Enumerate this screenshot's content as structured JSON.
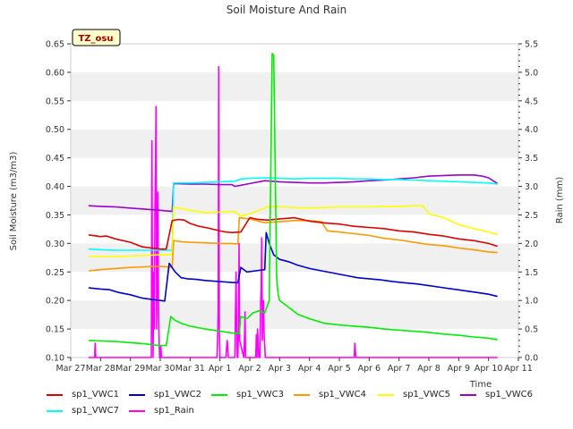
{
  "chart_data": {
    "type": "line",
    "title": "Soil Moisture And Rain",
    "site_label": "TZ_osu",
    "xlabel": "Time",
    "ylabel": "Soil Moisture (m3/m3)",
    "y2label": "Rain (mm)",
    "xlim": [
      0,
      15
    ],
    "ylim": [
      0.1,
      0.65
    ],
    "y2lim": [
      0.0,
      5.5
    ],
    "x_ticks": [
      0,
      1,
      2,
      3,
      4,
      5,
      6,
      7,
      8,
      9,
      10,
      11,
      12,
      13,
      14,
      15
    ],
    "x_tick_labels": [
      "Mar 27",
      "Mar 28",
      "Mar 29",
      "Mar 30",
      "Mar 31",
      "Apr 1",
      "Apr 2",
      "Apr 3",
      "Apr 4",
      "Apr 5",
      "Apr 6",
      "Apr 7",
      "Apr 8",
      "Apr 9",
      "Apr 10",
      "Apr 11"
    ],
    "y_ticks": [
      "0.10",
      "0.15",
      "0.20",
      "0.25",
      "0.30",
      "0.35",
      "0.40",
      "0.45",
      "0.50",
      "0.55",
      "0.60",
      "0.65"
    ],
    "y2_ticks": [
      "0.0",
      "0.5",
      "1.0",
      "1.5",
      "2.0",
      "2.5",
      "3.0",
      "3.5",
      "4.0",
      "4.5",
      "5.0",
      "5.5"
    ],
    "grid": "horizontal bands",
    "legend_position": "bottom",
    "series": [
      {
        "name": "sp1_VWC1",
        "color": "#dd0000",
        "axis": "left",
        "x": [
          0.6,
          1.0,
          1.2,
          1.5,
          2.0,
          2.4,
          2.7,
          3.0,
          3.2,
          3.4,
          3.6,
          3.8,
          4.0,
          4.3,
          4.6,
          5.0,
          5.2,
          5.4,
          5.7,
          6.0,
          6.3,
          6.6,
          7.0,
          7.5,
          8.0,
          8.5,
          9.0,
          9.5,
          10.0,
          10.5,
          11.0,
          11.5,
          12.0,
          12.5,
          13.0,
          13.5,
          14.0,
          14.3
        ],
        "y": [
          0.315,
          0.312,
          0.313,
          0.308,
          0.302,
          0.294,
          0.292,
          0.29,
          0.29,
          0.34,
          0.342,
          0.341,
          0.335,
          0.33,
          0.327,
          0.322,
          0.32,
          0.319,
          0.32,
          0.345,
          0.342,
          0.341,
          0.343,
          0.345,
          0.339,
          0.336,
          0.334,
          0.33,
          0.328,
          0.326,
          0.322,
          0.32,
          0.316,
          0.313,
          0.308,
          0.305,
          0.3,
          0.295
        ]
      },
      {
        "name": "sp1_VWC2",
        "color": "#0000cc",
        "axis": "left",
        "x": [
          0.6,
          1.0,
          1.3,
          1.6,
          2.0,
          2.4,
          2.7,
          3.0,
          3.15,
          3.3,
          3.5,
          3.7,
          3.9,
          4.2,
          4.5,
          5.0,
          5.3,
          5.6,
          5.7,
          5.9,
          6.2,
          6.5,
          6.55,
          6.65,
          6.8,
          7.0,
          7.3,
          7.6,
          8.0,
          8.4,
          8.8,
          9.2,
          9.6,
          10.0,
          10.4,
          10.8,
          11.2,
          11.6,
          12.0,
          12.4,
          12.8,
          13.2,
          13.6,
          14.0,
          14.3
        ],
        "y": [
          0.222,
          0.22,
          0.219,
          0.214,
          0.21,
          0.204,
          0.202,
          0.2,
          0.199,
          0.265,
          0.25,
          0.24,
          0.238,
          0.237,
          0.235,
          0.233,
          0.232,
          0.231,
          0.258,
          0.25,
          0.252,
          0.254,
          0.319,
          0.3,
          0.28,
          0.272,
          0.268,
          0.262,
          0.256,
          0.252,
          0.248,
          0.244,
          0.24,
          0.238,
          0.236,
          0.233,
          0.231,
          0.229,
          0.226,
          0.223,
          0.22,
          0.217,
          0.214,
          0.211,
          0.207
        ]
      },
      {
        "name": "sp1_VWC3",
        "color": "#00ee00",
        "axis": "left",
        "x": [
          0.6,
          1.0,
          1.5,
          2.0,
          2.5,
          2.8,
          3.0,
          3.2,
          3.35,
          3.5,
          3.7,
          4.0,
          4.5,
          5.0,
          5.4,
          5.65,
          5.7,
          5.9,
          6.1,
          6.3,
          6.5,
          6.65,
          6.75,
          6.8,
          6.9,
          6.95,
          7.0,
          7.3,
          7.6,
          8.0,
          8.5,
          9.0,
          9.5,
          10.0,
          10.5,
          11.0,
          11.5,
          12.0,
          12.5,
          13.0,
          13.5,
          14.0,
          14.3
        ],
        "y": [
          0.13,
          0.129,
          0.128,
          0.126,
          0.124,
          0.122,
          0.121,
          0.121,
          0.172,
          0.165,
          0.16,
          0.155,
          0.15,
          0.146,
          0.143,
          0.142,
          0.172,
          0.168,
          0.178,
          0.182,
          0.178,
          0.2,
          0.633,
          0.63,
          0.24,
          0.21,
          0.2,
          0.188,
          0.176,
          0.168,
          0.16,
          0.157,
          0.155,
          0.153,
          0.15,
          0.148,
          0.146,
          0.144,
          0.141,
          0.139,
          0.136,
          0.134,
          0.131
        ]
      },
      {
        "name": "sp1_VWC4",
        "color": "#ff9900",
        "axis": "left",
        "x": [
          0.6,
          1.0,
          1.5,
          2.0,
          2.5,
          3.0,
          3.4,
          3.45,
          3.7,
          4.0,
          4.5,
          5.0,
          5.4,
          5.6,
          5.65,
          6.0,
          6.5,
          6.6,
          7.0,
          7.5,
          8.0,
          8.4,
          8.6,
          9.0,
          9.5,
          10.0,
          10.5,
          11.0,
          11.5,
          12.0,
          12.5,
          13.0,
          13.5,
          14.0,
          14.3
        ],
        "y": [
          0.252,
          0.254,
          0.256,
          0.258,
          0.259,
          0.26,
          0.258,
          0.305,
          0.303,
          0.302,
          0.301,
          0.3,
          0.3,
          0.299,
          0.345,
          0.343,
          0.336,
          0.337,
          0.338,
          0.34,
          0.34,
          0.338,
          0.322,
          0.32,
          0.317,
          0.314,
          0.309,
          0.306,
          0.302,
          0.298,
          0.296,
          0.292,
          0.289,
          0.285,
          0.284
        ]
      },
      {
        "name": "sp1_VWC5",
        "color": "#ffff00",
        "axis": "left",
        "x": [
          0.6,
          1.0,
          1.5,
          2.0,
          2.5,
          3.0,
          3.4,
          3.45,
          3.6,
          4.0,
          4.5,
          5.0,
          5.5,
          5.7,
          6.0,
          6.5,
          6.6,
          7.0,
          7.5,
          8.0,
          8.5,
          9.0,
          9.5,
          10.0,
          10.5,
          11.0,
          11.5,
          11.8,
          12.0,
          12.5,
          13.0,
          13.5,
          14.0,
          14.3
        ],
        "y": [
          0.277,
          0.277,
          0.277,
          0.278,
          0.279,
          0.28,
          0.28,
          0.364,
          0.362,
          0.358,
          0.354,
          0.355,
          0.356,
          0.348,
          0.352,
          0.362,
          0.365,
          0.364,
          0.363,
          0.362,
          0.363,
          0.364,
          0.364,
          0.364,
          0.365,
          0.365,
          0.366,
          0.366,
          0.352,
          0.345,
          0.333,
          0.326,
          0.32,
          0.316
        ]
      },
      {
        "name": "sp1_VWC6",
        "color": "#9900cc",
        "axis": "left",
        "x": [
          0.6,
          1.0,
          1.5,
          2.0,
          2.5,
          3.0,
          3.4,
          3.45,
          4.0,
          4.5,
          5.0,
          5.4,
          5.5,
          5.7,
          6.0,
          6.5,
          7.0,
          7.5,
          8.0,
          8.5,
          9.0,
          9.5,
          10.0,
          10.5,
          11.0,
          11.5,
          12.0,
          12.5,
          13.0,
          13.5,
          13.8,
          14.0,
          14.3
        ],
        "y": [
          0.366,
          0.365,
          0.364,
          0.362,
          0.36,
          0.358,
          0.356,
          0.405,
          0.404,
          0.404,
          0.403,
          0.403,
          0.4,
          0.402,
          0.405,
          0.41,
          0.408,
          0.407,
          0.406,
          0.406,
          0.407,
          0.408,
          0.41,
          0.411,
          0.413,
          0.415,
          0.418,
          0.419,
          0.42,
          0.42,
          0.418,
          0.415,
          0.405
        ]
      },
      {
        "name": "sp1_VWC7",
        "color": "#00ffff",
        "axis": "left",
        "x": [
          0.6,
          1.0,
          1.5,
          2.0,
          2.5,
          3.0,
          3.4,
          3.45,
          4.0,
          4.5,
          5.0,
          5.5,
          5.7,
          6.0,
          6.5,
          7.0,
          7.5,
          8.0,
          8.5,
          9.0,
          9.5,
          10.0,
          10.5,
          11.0,
          11.5,
          12.0,
          12.5,
          13.0,
          13.5,
          14.0,
          14.3
        ],
        "y": [
          0.29,
          0.289,
          0.288,
          0.288,
          0.288,
          0.288,
          0.288,
          0.406,
          0.406,
          0.407,
          0.408,
          0.409,
          0.413,
          0.414,
          0.415,
          0.414,
          0.413,
          0.414,
          0.414,
          0.414,
          0.413,
          0.413,
          0.412,
          0.412,
          0.411,
          0.41,
          0.409,
          0.408,
          0.407,
          0.406,
          0.404
        ]
      },
      {
        "name": "sp1_Rain",
        "color": "#ff00ff",
        "axis": "right",
        "x": [
          0.6,
          0.8,
          0.82,
          0.84,
          2.7,
          2.72,
          2.74,
          2.76,
          2.78,
          2.8,
          2.82,
          2.84,
          2.86,
          2.88,
          2.9,
          2.92,
          2.94,
          2.96,
          2.98,
          3.0,
          3.02,
          3.04,
          3.06,
          3.08,
          3.1,
          4.9,
          4.92,
          4.94,
          4.96,
          4.98,
          5.0,
          5.2,
          5.22,
          5.24,
          5.26,
          5.28,
          5.3,
          5.32,
          5.34,
          5.5,
          5.52,
          5.54,
          5.56,
          5.58,
          5.6,
          5.62,
          5.64,
          5.66,
          5.8,
          5.82,
          5.84,
          5.86,
          5.88,
          6.2,
          6.22,
          6.24,
          6.26,
          6.28,
          6.3,
          6.32,
          6.34,
          6.36,
          6.38,
          6.4,
          6.42,
          6.44,
          6.46,
          6.48,
          6.5,
          6.52,
          6.54,
          6.56,
          6.58,
          6.6,
          6.62,
          6.64,
          6.66,
          9.5,
          9.52,
          9.54,
          9.56,
          14.3
        ],
        "y": [
          0,
          0,
          0.25,
          0,
          0,
          3.8,
          1.0,
          0,
          1.5,
          0.5,
          2.5,
          3.3,
          4.4,
          0.5,
          1.6,
          2.9,
          1.0,
          0.3,
          0,
          0,
          0.2,
          0,
          0,
          0,
          0,
          0,
          0.3,
          0.8,
          5.1,
          0.5,
          0,
          0,
          0.15,
          0.3,
          0.2,
          0,
          0,
          0,
          0,
          0,
          0.8,
          1.5,
          0.6,
          0,
          0,
          0.5,
          2.0,
          0.3,
          0,
          0.3,
          0.8,
          0,
          0,
          0,
          0.4,
          0,
          0.5,
          0.3,
          0,
          0,
          0,
          0.9,
          1.2,
          2.1,
          0.3,
          0.8,
          1.0,
          0.4,
          0.2,
          0,
          0,
          0,
          0,
          0,
          0,
          0,
          0,
          0,
          0.25,
          0.1,
          0,
          0
        ]
      }
    ]
  }
}
